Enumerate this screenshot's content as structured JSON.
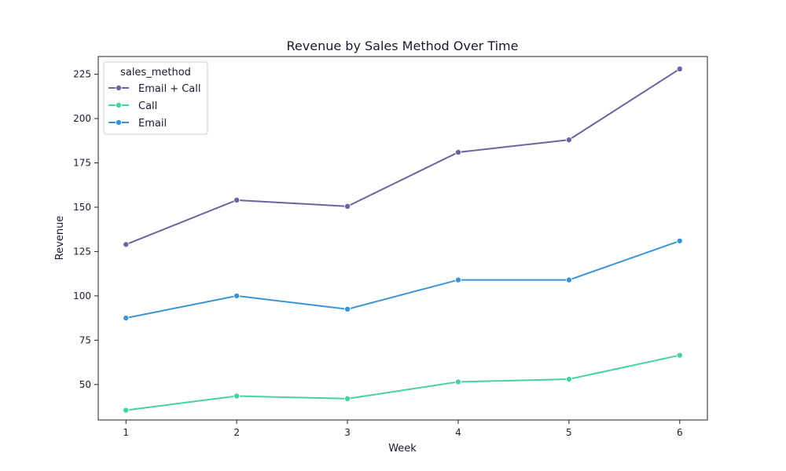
{
  "chart_data": {
    "type": "line",
    "title": "Revenue by Sales Method Over Time",
    "xlabel": "Week",
    "ylabel": "Revenue",
    "x": [
      1,
      2,
      3,
      4,
      5,
      6
    ],
    "xlim": [
      0.75,
      6.25
    ],
    "ylim": [
      30,
      235
    ],
    "xticks": [
      1,
      2,
      3,
      4,
      5,
      6
    ],
    "yticks": [
      50,
      75,
      100,
      125,
      150,
      175,
      200,
      225
    ],
    "grid": false,
    "legend": {
      "title": "sales_method",
      "placement": "top-left"
    },
    "series": [
      {
        "name": "Email + Call",
        "color": "#67669e",
        "values": [
          129,
          154,
          150.5,
          181,
          188,
          228
        ]
      },
      {
        "name": "Call",
        "color": "#44d39d",
        "values": [
          35.5,
          43.5,
          42,
          51.5,
          53,
          66.5
        ]
      },
      {
        "name": "Email",
        "color": "#3a95d6",
        "values": [
          87.5,
          100,
          92.5,
          109,
          109,
          131
        ]
      }
    ]
  }
}
